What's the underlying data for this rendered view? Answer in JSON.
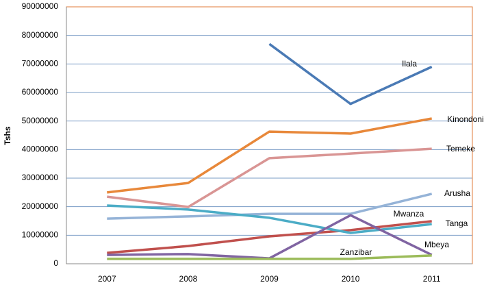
{
  "chart_data": {
    "type": "line",
    "y_label": "Tshs",
    "categories": [
      "2007",
      "2008",
      "2009",
      "2010",
      "2011"
    ],
    "ylim": [
      0,
      90000000
    ],
    "yticks": [
      0,
      10000000,
      20000000,
      30000000,
      40000000,
      50000000,
      60000000,
      70000000,
      80000000,
      90000000
    ],
    "grid": true,
    "series": [
      {
        "name": "Ilala",
        "color": "#4a7ab5",
        "values": [
          null,
          null,
          77000000,
          56000000,
          69000000
        ]
      },
      {
        "name": "Kinondoni",
        "color": "#e8883a",
        "values": [
          25000000,
          28300000,
          46300000,
          45600000,
          50900000
        ]
      },
      {
        "name": "Temeke",
        "color": "#d99594",
        "values": [
          23500000,
          19900000,
          37000000,
          38600000,
          40300000
        ]
      },
      {
        "name": "Arusha",
        "color": "#95b3d7",
        "values": [
          15800000,
          16600000,
          17500000,
          17500000,
          24500000
        ]
      },
      {
        "name": "Mwanza",
        "color": "#c0504d",
        "values": [
          3800000,
          6200000,
          9600000,
          11800000,
          14900000
        ]
      },
      {
        "name": "Tanga",
        "color": "#4bacc6",
        "values": [
          20400000,
          19000000,
          16100000,
          10800000,
          13900000
        ]
      },
      {
        "name": "Mbeya",
        "color": "#8064a2",
        "values": [
          3100000,
          3400000,
          1900000,
          17000000,
          3100000
        ]
      },
      {
        "name": "Zanzibar",
        "color": "#9bbb59",
        "values": [
          1700000,
          1700000,
          1700000,
          1700000,
          2900000
        ]
      }
    ]
  }
}
